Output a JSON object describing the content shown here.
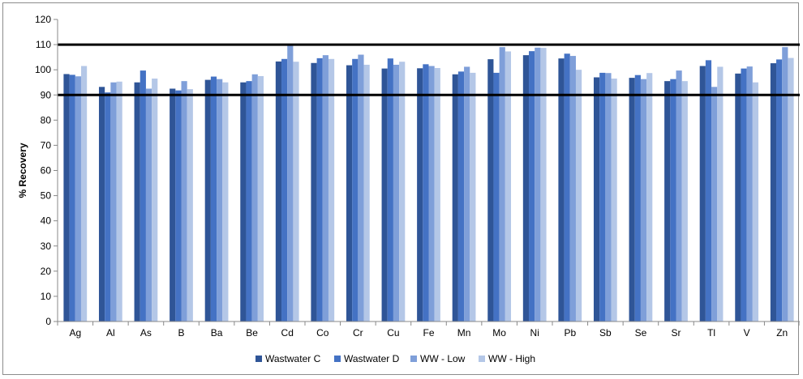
{
  "chart_data": {
    "type": "bar",
    "title": "",
    "xlabel": "",
    "ylabel": "% Recovery",
    "ylim": [
      0,
      120
    ],
    "ytick_step": 10,
    "grid": false,
    "legend_position": "bottom",
    "reference_lines": [
      90,
      110
    ],
    "categories": [
      "Ag",
      "Al",
      "As",
      "B",
      "Ba",
      "Be",
      "Cd",
      "Co",
      "Cr",
      "Cu",
      "Fe",
      "Mn",
      "Mo",
      "Ni",
      "Pb",
      "Sb",
      "Se",
      "Sr",
      "Tl",
      "V",
      "Zn"
    ],
    "series": [
      {
        "name": "Wastwater C",
        "color": "#2f5597",
        "values": [
          98.3,
          93.2,
          95.0,
          92.5,
          96.0,
          95.0,
          103.3,
          102.7,
          101.8,
          100.5,
          100.6,
          98.2,
          104.2,
          105.8,
          104.5,
          97.0,
          96.8,
          95.5,
          101.5,
          98.5,
          102.6
        ]
      },
      {
        "name": "Wastwater D",
        "color": "#4472c4",
        "values": [
          98.0,
          91.0,
          99.7,
          91.8,
          97.3,
          95.5,
          104.3,
          104.6,
          104.3,
          104.5,
          102.2,
          99.3,
          98.8,
          107.4,
          106.4,
          98.8,
          97.9,
          96.3,
          103.8,
          100.5,
          104.1
        ]
      },
      {
        "name": "WW - Low",
        "color": "#7f9fd9",
        "values": [
          97.4,
          95.0,
          92.5,
          95.5,
          96.3,
          98.2,
          110.0,
          105.8,
          106.0,
          102.0,
          101.5,
          101.2,
          109.0,
          108.8,
          105.5,
          98.7,
          96.3,
          99.7,
          93.2,
          101.3,
          109.0
        ]
      },
      {
        "name": "WW - High",
        "color": "#b4c7e7",
        "values": [
          101.5,
          95.3,
          96.5,
          92.3,
          95.0,
          97.5,
          103.2,
          104.3,
          102.0,
          103.2,
          100.7,
          98.8,
          107.3,
          108.7,
          100.0,
          96.5,
          98.7,
          95.5,
          101.2,
          95.0,
          104.7
        ]
      }
    ]
  }
}
